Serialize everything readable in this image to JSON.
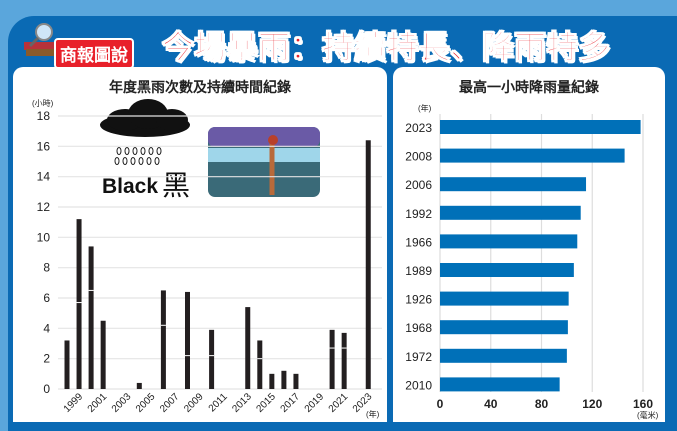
{
  "header": {
    "badge": "商報圖說",
    "title": "今場暴雨：持續特長、降雨特多"
  },
  "illustration": {
    "label_en": "Black",
    "label_zh": "黑"
  },
  "colors": {
    "background": "#5aa6dc",
    "frame": "#0a6ab4",
    "title_red": "#e8202a",
    "bar_dark": "#231f20",
    "bar_blue": "#0070b8"
  },
  "chart_data": [
    {
      "type": "bar",
      "title": "年度黑雨次數及持續時間紀錄",
      "ylabel": "(小時)",
      "xlabel": "(年)",
      "ylim": [
        0,
        18
      ],
      "yticks": [
        "0",
        "2",
        "4",
        "6",
        "8",
        "10",
        "12",
        "14",
        "16",
        "18"
      ],
      "xticks": [
        "1999",
        "2001",
        "2003",
        "2005",
        "2007",
        "2009",
        "2011",
        "2013",
        "2015",
        "2017",
        "2019",
        "2021",
        "2023"
      ],
      "grid": true,
      "categories": [
        1998,
        1999,
        2000,
        2001,
        2004,
        2006,
        2008,
        2010,
        2013,
        2014,
        2015,
        2016,
        2017,
        2020,
        2021,
        2023
      ],
      "values": [
        3.2,
        11.2,
        9.4,
        4.5,
        0.4,
        6.5,
        6.4,
        3.9,
        5.4,
        3.2,
        1.0,
        1.2,
        1.0,
        3.9,
        3.7,
        16.4
      ],
      "segment_breaks": [
        [],
        [
          5.7
        ],
        [
          6.5
        ],
        [],
        [],
        [
          4.2
        ],
        [
          2.2
        ],
        [
          2.2
        ],
        [],
        [
          2.0
        ],
        [],
        [],
        [],
        [
          2.7
        ],
        [
          2.7
        ],
        []
      ]
    },
    {
      "type": "bar",
      "orientation": "horizontal",
      "title": "最高一小時降雨量紀錄",
      "ylabel": "(年)",
      "xlabel": "(毫米)",
      "xlim": [
        0,
        160
      ],
      "xticks": [
        "0",
        "40",
        "80",
        "120",
        "160"
      ],
      "grid": true,
      "categories": [
        "2023",
        "2008",
        "2006",
        "1992",
        "1966",
        "1989",
        "1926",
        "1968",
        "1972",
        "2010"
      ],
      "values": [
        158.1,
        145.5,
        115.1,
        110.9,
        108.2,
        105.5,
        101.4,
        100.8,
        100.0,
        94.3
      ]
    }
  ]
}
